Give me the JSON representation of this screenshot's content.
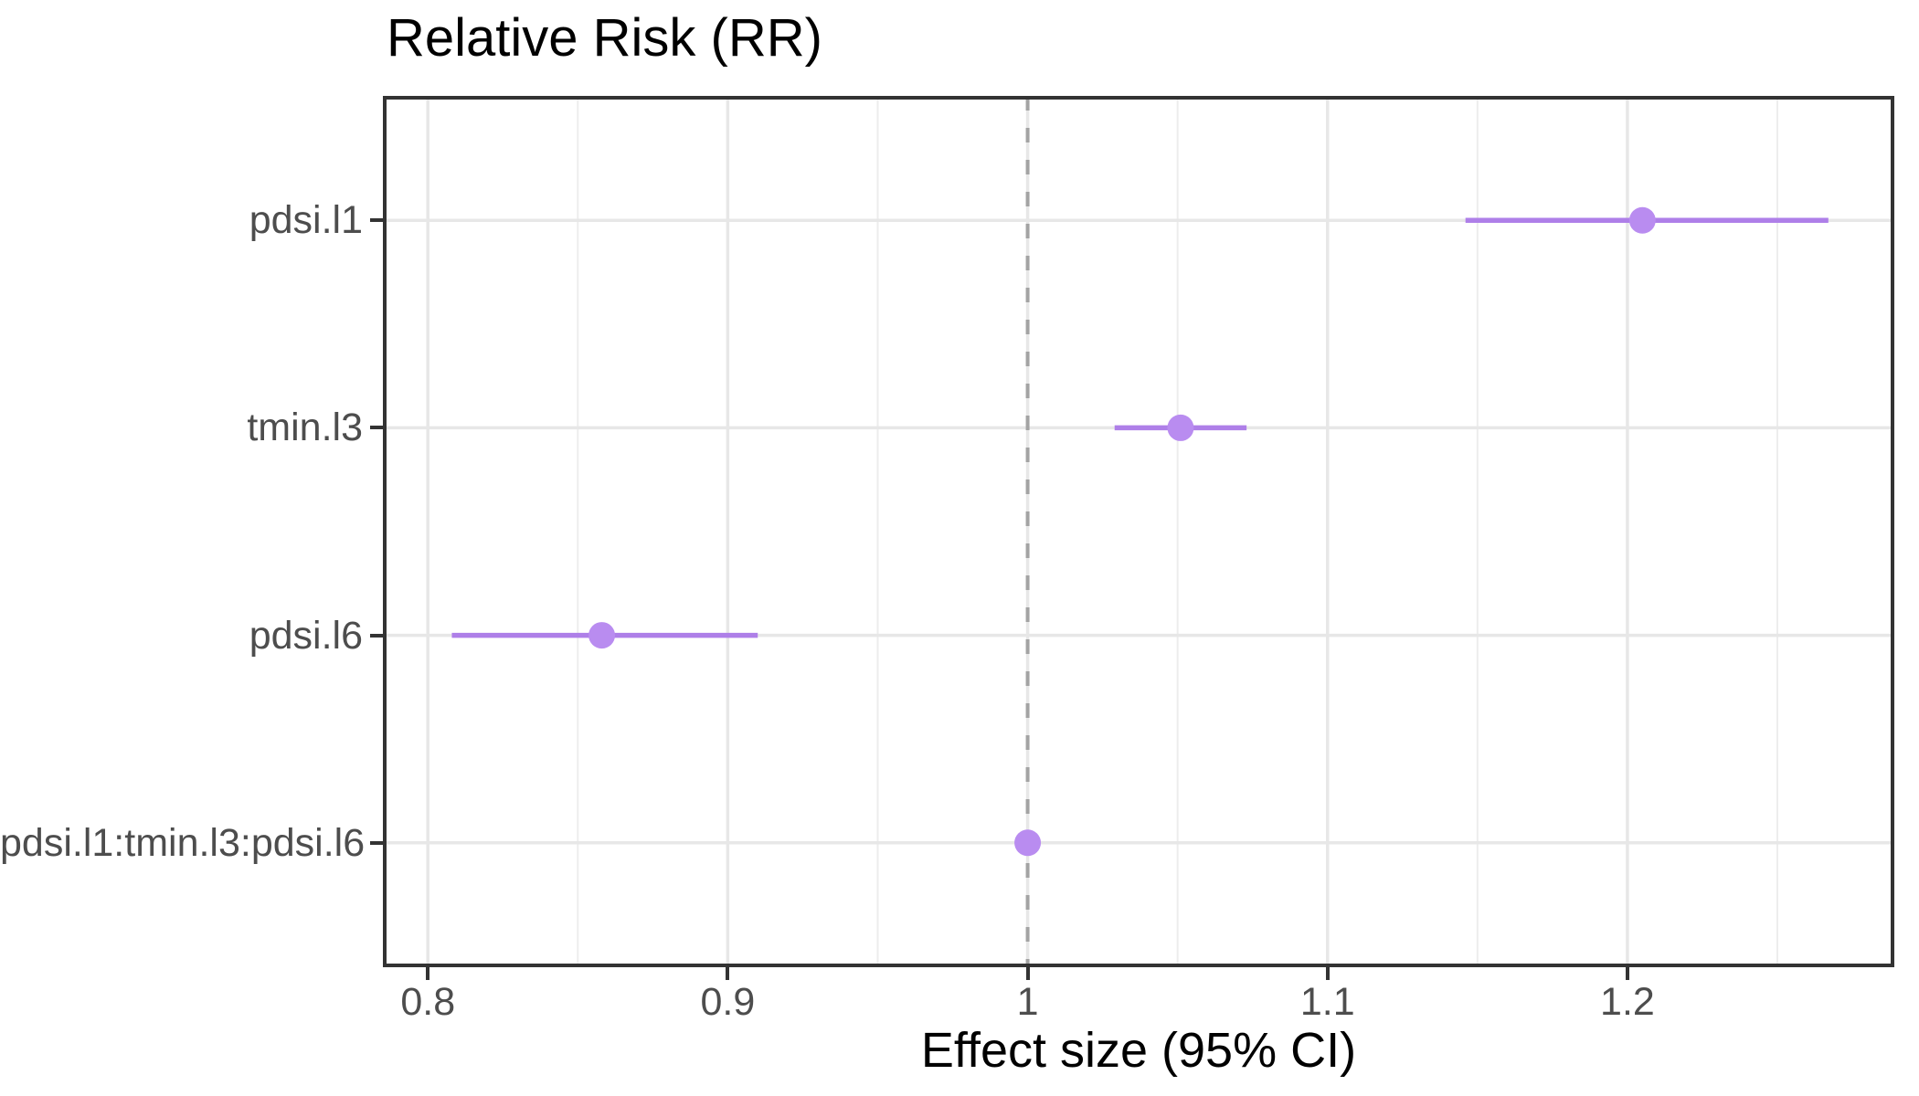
{
  "chart_data": {
    "type": "scatter",
    "subtype": "forest-dot-whisker",
    "title": "Relative Risk (RR)",
    "xlabel": "Effect size (95% CI)",
    "ylabel": "",
    "categories": [
      "pdsi.l1",
      "tmin.l3",
      "pdsi.l6",
      "pdsi.l1:tmin.l3:pdsi.l6"
    ],
    "series": [
      {
        "name": "pdsi.l1",
        "estimate": 1.205,
        "ci_low": 1.146,
        "ci_high": 1.267
      },
      {
        "name": "tmin.l3",
        "estimate": 1.051,
        "ci_low": 1.029,
        "ci_high": 1.073
      },
      {
        "name": "pdsi.l6",
        "estimate": 0.858,
        "ci_low": 0.808,
        "ci_high": 0.91
      },
      {
        "name": "pdsi.l1:tmin.l3:pdsi.l6",
        "estimate": 1.0,
        "ci_low": 0.998,
        "ci_high": 1.002
      }
    ],
    "reference_line": 1.0,
    "x_ticks": [
      0.8,
      0.9,
      1.0,
      1.1,
      1.2
    ],
    "x_tick_labels": [
      "0.8",
      "0.9",
      "1",
      "1.1",
      "1.2"
    ],
    "x_minor_ticks": [
      0.85,
      0.95,
      1.05,
      1.15,
      1.25
    ],
    "xlim": [
      0.785,
      1.289
    ],
    "grid": true,
    "legend": "none"
  },
  "colors": {
    "point": "#b98cf0",
    "ci_line": "#ae7fe8",
    "reference_line": "#a3a3a3",
    "grid_major": "#e7e7e7",
    "grid_minor": "#ededed",
    "panel_border": "#333333",
    "axis_text": "#4d4d4d",
    "title_text": "#000000",
    "background": "#ffffff"
  }
}
